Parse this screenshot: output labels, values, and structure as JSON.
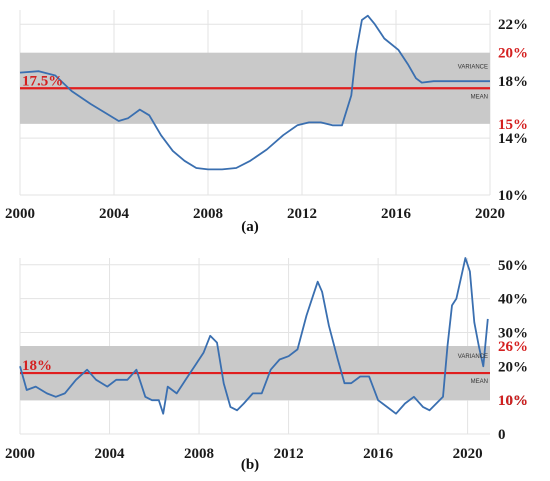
{
  "chart_data": [
    {
      "panel": "(a)",
      "type": "line",
      "xlim": [
        2000,
        2020
      ],
      "ylim": [
        10,
        23
      ],
      "x_ticks": [
        "2000",
        "2004",
        "2008",
        "2012",
        "2016",
        "2020"
      ],
      "x_tick_values": [
        2000,
        2004,
        2008,
        2012,
        2016,
        2020
      ],
      "y_ticks": [
        "22%",
        "18%",
        "14%",
        "10%"
      ],
      "y_tick_values": [
        22,
        18,
        14,
        10
      ],
      "grid": true,
      "series": [
        {
          "color": "#3a6fb0",
          "x": [
            2000,
            2000.8,
            2001.5,
            2002.2,
            2003,
            2003.7,
            2004.2,
            2004.6,
            2005.1,
            2005.5,
            2006,
            2006.5,
            2007,
            2007.5,
            2008,
            2008.6,
            2009.2,
            2009.8,
            2010.5,
            2011.2,
            2011.8,
            2012.3,
            2012.8,
            2013.3,
            2013.7,
            2014.1,
            2014.3,
            2014.55,
            2014.8,
            2015.1,
            2015.5,
            2016.1,
            2016.5,
            2016.85,
            2017.1,
            2017.6,
            2018.5,
            2019.5,
            2020
          ],
          "y": [
            18.6,
            18.7,
            18.4,
            17.3,
            16.4,
            15.7,
            15.2,
            15.4,
            16.0,
            15.6,
            14.2,
            13.1,
            12.4,
            11.9,
            11.8,
            11.8,
            11.9,
            12.4,
            13.2,
            14.2,
            14.9,
            15.1,
            15.1,
            14.9,
            14.9,
            17.0,
            20.0,
            22.3,
            22.6,
            22.0,
            21.0,
            20.2,
            19.2,
            18.2,
            17.9,
            18.0,
            18.0,
            18.0,
            18.0
          ]
        }
      ],
      "mean": {
        "value": 17.5,
        "label": "17.5%",
        "tag": "MEAN",
        "color": "#e01e1e"
      },
      "variance": {
        "range": [
          15,
          20
        ],
        "low_label": "15%",
        "high_label": "20%",
        "tag": "VARIANCE",
        "color": "#c9c9c9"
      }
    },
    {
      "panel": "(b)",
      "type": "line",
      "xlim": [
        2000,
        2021
      ],
      "ylim": [
        0,
        52
      ],
      "x_ticks": [
        "2000",
        "2004",
        "2008",
        "2012",
        "2016",
        "2020"
      ],
      "x_tick_values": [
        2000,
        2004,
        2008,
        2012,
        2016,
        2020
      ],
      "y_ticks": [
        "50%",
        "40%",
        "30%",
        "20%",
        "10%",
        "0"
      ],
      "y_tick_values": [
        50,
        40,
        30,
        20,
        10,
        0
      ],
      "grid": true,
      "series": [
        {
          "color": "#3a6fb0",
          "x": [
            2000,
            2000.3,
            2000.7,
            2001.2,
            2001.6,
            2002.0,
            2002.5,
            2003.0,
            2003.4,
            2003.9,
            2004.3,
            2004.8,
            2005.2,
            2005.6,
            2005.9,
            2006.2,
            2006.4,
            2006.6,
            2007.0,
            2007.4,
            2007.8,
            2008.2,
            2008.5,
            2008.8,
            2009.1,
            2009.4,
            2009.7,
            2010.0,
            2010.4,
            2010.8,
            2011.2,
            2011.6,
            2012.0,
            2012.4,
            2012.8,
            2013.1,
            2013.3,
            2013.5,
            2013.8,
            2014.2,
            2014.5,
            2014.8,
            2015.2,
            2015.6,
            2016.0,
            2016.4,
            2016.8,
            2017.2,
            2017.6,
            2018.0,
            2018.3,
            2018.6,
            2018.9,
            2019.1,
            2019.3,
            2019.5,
            2019.7,
            2019.9,
            2020.1,
            2020.3,
            2020.5,
            2020.7,
            2020.9
          ],
          "y": [
            20,
            13,
            14,
            12,
            11,
            12,
            16,
            19,
            16,
            14,
            16,
            16,
            19,
            11,
            10,
            10,
            6,
            14,
            12,
            16,
            20,
            24,
            29,
            27,
            15,
            8,
            7,
            9,
            12,
            12,
            19,
            22,
            23,
            25,
            35,
            41,
            45,
            42,
            32,
            22,
            15,
            15,
            17,
            17,
            10,
            8,
            6,
            9,
            11,
            8,
            7,
            9,
            11,
            26,
            38,
            40,
            46,
            52,
            48,
            33,
            26,
            20,
            34
          ]
        }
      ],
      "mean": {
        "value": 18,
        "label": "18%",
        "tag": "MEAN",
        "color": "#e01e1e"
      },
      "variance": {
        "range": [
          10,
          26
        ],
        "low_label": "10%",
        "high_label": "26%",
        "tag": "VARIANCE",
        "color": "#c9c9c9"
      }
    }
  ]
}
